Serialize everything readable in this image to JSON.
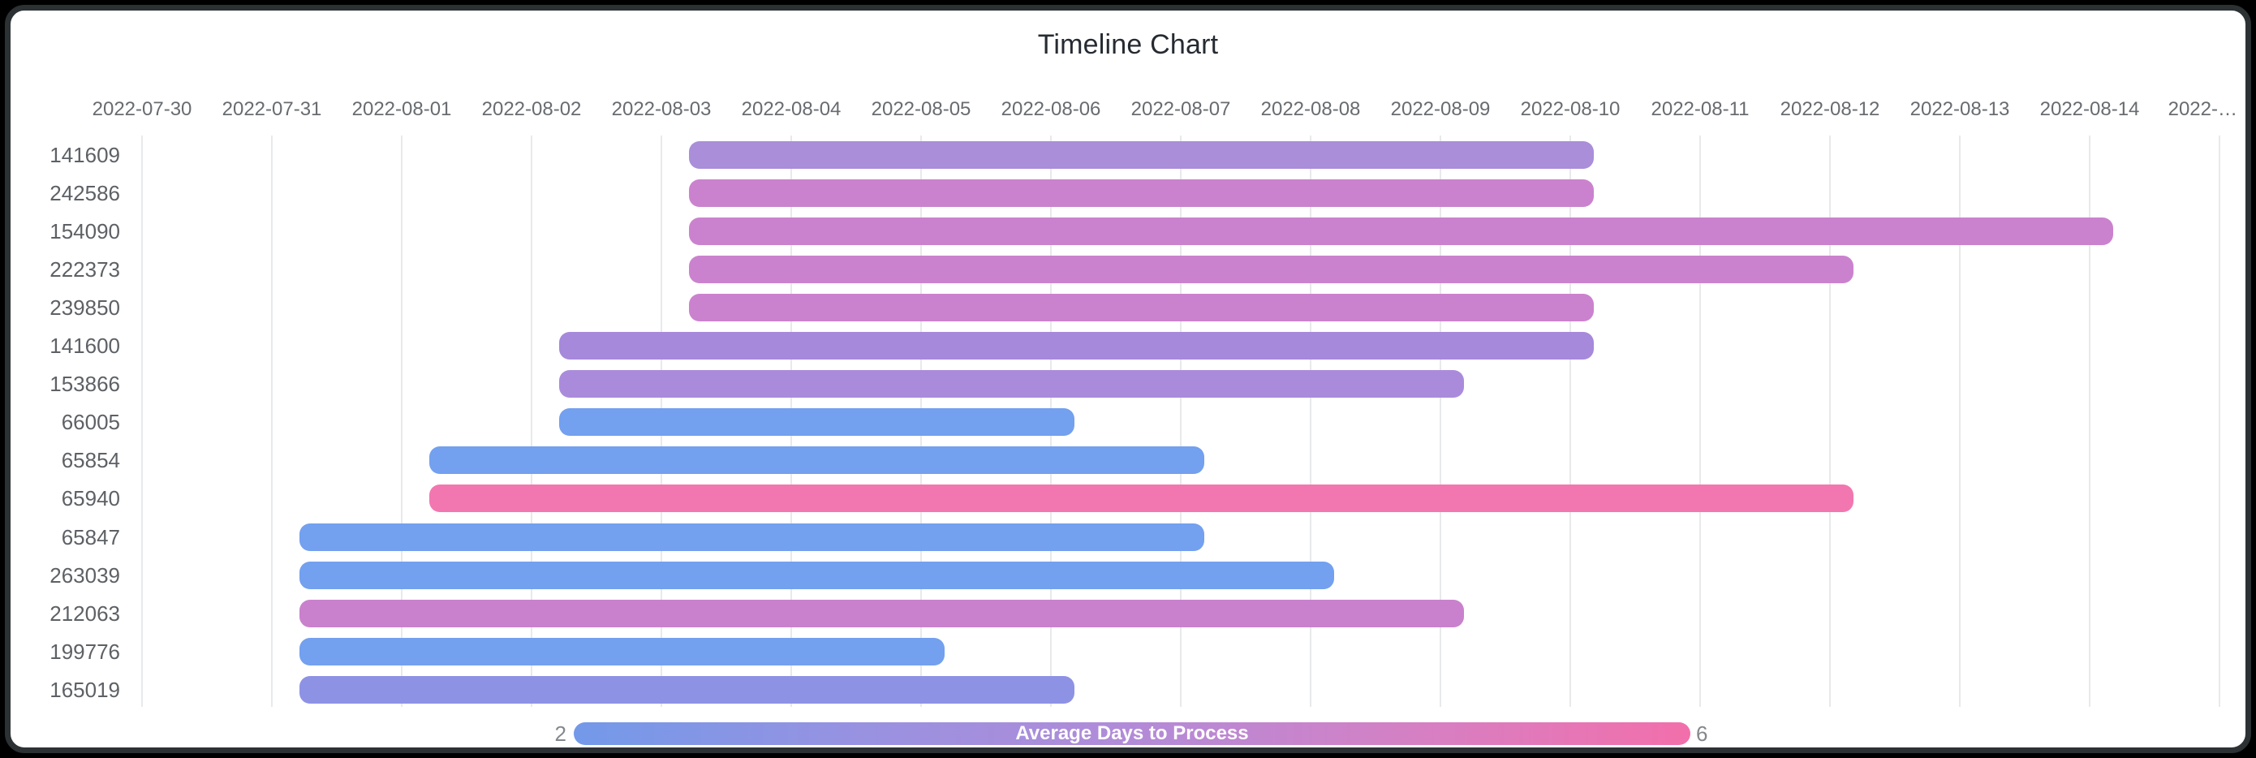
{
  "window": {
    "background_color": "#000000",
    "card_background": "#ffffff",
    "frame_border_color": "#2c3134"
  },
  "chart_data": {
    "type": "timeline",
    "title": "Timeline Chart",
    "x_axis": {
      "start_date": "2022-07-30",
      "days_per_tick": 1,
      "tick_labels": [
        "2022-07-30",
        "2022-07-31",
        "2022-08-01",
        "2022-08-02",
        "2022-08-03",
        "2022-08-04",
        "2022-08-05",
        "2022-08-06",
        "2022-08-07",
        "2022-08-08",
        "2022-08-09",
        "2022-08-10",
        "2022-08-11",
        "2022-08-12",
        "2022-08-13",
        "2022-08-14",
        "2022-…"
      ],
      "grid": true,
      "gridline_color": "#e8e9eb",
      "tick_label_color": "#686c70"
    },
    "bar_time_offsets_days": {
      "start": 0.215,
      "end": 0.18
    },
    "rows": [
      {
        "label": "141609",
        "start": "2022-08-03",
        "end": "2022-08-10",
        "color": "#aa8ed9"
      },
      {
        "label": "242586",
        "start": "2022-08-03",
        "end": "2022-08-10",
        "color": "#cb82ce"
      },
      {
        "label": "154090",
        "start": "2022-08-03",
        "end": "2022-08-14",
        "color": "#cb82ce"
      },
      {
        "label": "222373",
        "start": "2022-08-03",
        "end": "2022-08-12",
        "color": "#cb82ce"
      },
      {
        "label": "239850",
        "start": "2022-08-03",
        "end": "2022-08-10",
        "color": "#cb82ce"
      },
      {
        "label": "141600",
        "start": "2022-08-02",
        "end": "2022-08-10",
        "color": "#a689da"
      },
      {
        "label": "153866",
        "start": "2022-08-02",
        "end": "2022-08-09",
        "color": "#aa8bdb"
      },
      {
        "label": "66005",
        "start": "2022-08-02",
        "end": "2022-08-06",
        "color": "#73a0ef"
      },
      {
        "label": "65854",
        "start": "2022-08-01",
        "end": "2022-08-07",
        "color": "#73a0ef"
      },
      {
        "label": "65940",
        "start": "2022-08-01",
        "end": "2022-08-12",
        "color": "#f277b0"
      },
      {
        "label": "65847",
        "start": "2022-07-31",
        "end": "2022-08-07",
        "color": "#73a0ef"
      },
      {
        "label": "263039",
        "start": "2022-07-31",
        "end": "2022-08-08",
        "color": "#73a0ef"
      },
      {
        "label": "212063",
        "start": "2022-07-31",
        "end": "2022-08-09",
        "color": "#c981cd"
      },
      {
        "label": "199776",
        "start": "2022-07-31",
        "end": "2022-08-05",
        "color": "#73a0ef"
      },
      {
        "label": "165019",
        "start": "2022-07-31",
        "end": "2022-08-06",
        "color": "#8e92e4"
      }
    ],
    "legend": {
      "label": "Average Days to Process",
      "min": "2",
      "max": "6",
      "gradient": [
        "#7399e9",
        "#9792e1",
        "#b28bd8",
        "#d580c4",
        "#f26fab"
      ],
      "position": "bottom"
    }
  }
}
